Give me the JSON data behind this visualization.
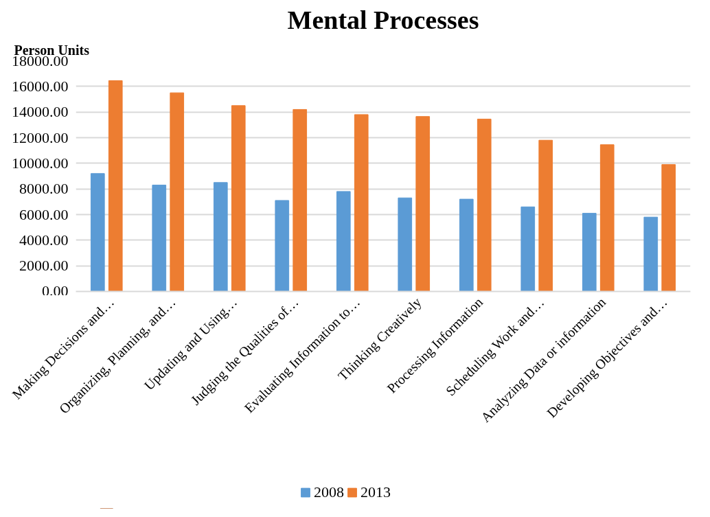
{
  "chart_data": {
    "type": "bar",
    "title": "Mental Processes",
    "ylabel": "Person Units",
    "categories": [
      "Making Decisions and…",
      "Organizing, Planning, and…",
      "Updating and Using…",
      "Judging the Qualities of…",
      "Evaluating Information to…",
      "Thinking Creatively",
      "Processing Information",
      "Scheduling Work and…",
      "Analyzing Data or information",
      "Developing Objectives and…"
    ],
    "series": [
      {
        "name": "2008",
        "color": "#5b9bd5",
        "values": [
          9200,
          8300,
          8500,
          7100,
          7800,
          7300,
          7200,
          6600,
          6100,
          5800
        ]
      },
      {
        "name": "2013",
        "color": "#ed7d31",
        "values": [
          16450,
          15500,
          14500,
          14200,
          13800,
          13650,
          13450,
          11800,
          11450,
          9900
        ]
      }
    ],
    "ylim": [
      0,
      18000
    ],
    "yticks": [
      {
        "value": 0,
        "label": "0.00"
      },
      {
        "value": 2000,
        "label": "2000.00"
      },
      {
        "value": 4000,
        "label": "4000.00"
      },
      {
        "value": 6000,
        "label": "6000.00"
      },
      {
        "value": 8000,
        "label": "8000.00"
      },
      {
        "value": 10000,
        "label": "10000.00"
      },
      {
        "value": 12000,
        "label": "12000.00"
      },
      {
        "value": 14000,
        "label": "14000.00"
      },
      {
        "value": 16000,
        "label": "16000.00"
      },
      {
        "value": 18000,
        "label": "18000.00"
      }
    ],
    "grid": "y",
    "legend": "bottom"
  }
}
